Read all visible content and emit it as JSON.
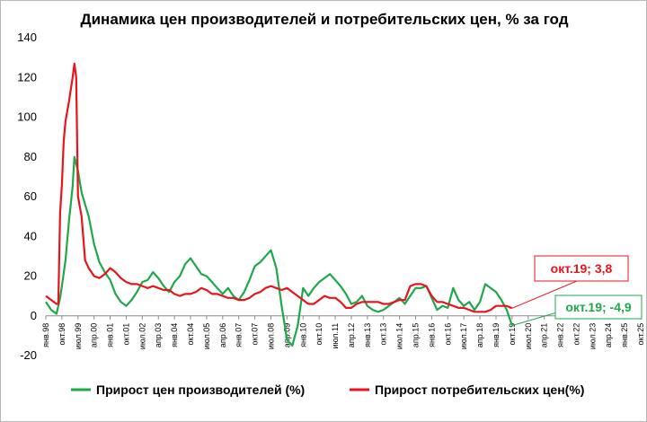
{
  "chart_data": {
    "type": "line",
    "title": "Динамика цен производителей и потребительских цен, % за год",
    "xlabel": "",
    "ylabel": "",
    "ylim": [
      -20,
      140
    ],
    "yticks": [
      -20,
      0,
      20,
      40,
      60,
      80,
      100,
      120,
      140
    ],
    "xlim": [
      "1998-01",
      "2025-10"
    ],
    "x_tick_labels": [
      "янв.98",
      "окт.98",
      "июл.99",
      "апр.00",
      "янв.01",
      "окт.01",
      "июл.02",
      "апр.03",
      "янв.04",
      "окт.04",
      "июл.05",
      "апр.06",
      "янв.07",
      "окт.07",
      "июл.08",
      "апр.09",
      "янв.10",
      "окт.10",
      "июл.11",
      "апр.12",
      "янв.13",
      "окт.13",
      "июл.14",
      "апр.15",
      "янв.16",
      "окт.16",
      "июл.17",
      "апр.18",
      "янв.19",
      "окт.19",
      "июл.20",
      "апр.21",
      "янв.22",
      "окт.22",
      "июл.23",
      "апр.24",
      "янв.25",
      "окт.25"
    ],
    "grid": false,
    "legend_position": "bottom",
    "series": [
      {
        "name": "Прирост цен производителей (%)",
        "color": "#1fa84a",
        "points": [
          [
            "1998-01",
            7
          ],
          [
            "1998-04",
            3
          ],
          [
            "1998-07",
            1
          ],
          [
            "1998-09",
            9
          ],
          [
            "1998-10",
            15
          ],
          [
            "1998-12",
            28
          ],
          [
            "1999-02",
            48
          ],
          [
            "1999-04",
            65
          ],
          [
            "1999-05",
            80
          ],
          [
            "1999-07",
            73
          ],
          [
            "1999-09",
            62
          ],
          [
            "2000-01",
            50
          ],
          [
            "2000-04",
            36
          ],
          [
            "2000-07",
            27
          ],
          [
            "2000-10",
            22
          ],
          [
            "2001-01",
            18
          ],
          [
            "2001-04",
            11
          ],
          [
            "2001-07",
            7
          ],
          [
            "2001-10",
            5
          ],
          [
            "2002-01",
            8
          ],
          [
            "2002-04",
            12
          ],
          [
            "2002-07",
            17
          ],
          [
            "2002-10",
            18
          ],
          [
            "2003-01",
            22
          ],
          [
            "2003-04",
            19
          ],
          [
            "2003-07",
            15
          ],
          [
            "2003-10",
            12
          ],
          [
            "2004-01",
            17
          ],
          [
            "2004-04",
            20
          ],
          [
            "2004-07",
            26
          ],
          [
            "2004-10",
            29
          ],
          [
            "2005-01",
            25
          ],
          [
            "2005-04",
            21
          ],
          [
            "2005-07",
            20
          ],
          [
            "2005-10",
            17
          ],
          [
            "2006-01",
            14
          ],
          [
            "2006-04",
            11
          ],
          [
            "2006-07",
            14
          ],
          [
            "2006-10",
            10
          ],
          [
            "2007-01",
            8
          ],
          [
            "2007-04",
            12
          ],
          [
            "2007-07",
            18
          ],
          [
            "2007-10",
            25
          ],
          [
            "2008-01",
            27
          ],
          [
            "2008-04",
            30
          ],
          [
            "2008-07",
            33
          ],
          [
            "2008-10",
            24
          ],
          [
            "2009-01",
            5
          ],
          [
            "2009-04",
            -12
          ],
          [
            "2009-07",
            -15
          ],
          [
            "2009-10",
            -5
          ],
          [
            "2010-01",
            14
          ],
          [
            "2010-04",
            10
          ],
          [
            "2010-07",
            14
          ],
          [
            "2010-10",
            17
          ],
          [
            "2011-01",
            19
          ],
          [
            "2011-04",
            21
          ],
          [
            "2011-07",
            18
          ],
          [
            "2011-10",
            15
          ],
          [
            "2012-01",
            11
          ],
          [
            "2012-04",
            6
          ],
          [
            "2012-07",
            7
          ],
          [
            "2012-10",
            10
          ],
          [
            "2013-01",
            5
          ],
          [
            "2013-04",
            3
          ],
          [
            "2013-07",
            2
          ],
          [
            "2013-10",
            3
          ],
          [
            "2014-01",
            5
          ],
          [
            "2014-04",
            7
          ],
          [
            "2014-07",
            9
          ],
          [
            "2014-10",
            6
          ],
          [
            "2015-01",
            10
          ],
          [
            "2015-04",
            14
          ],
          [
            "2015-07",
            14
          ],
          [
            "2015-10",
            15
          ],
          [
            "2016-01",
            9
          ],
          [
            "2016-04",
            3
          ],
          [
            "2016-07",
            5
          ],
          [
            "2016-10",
            4
          ],
          [
            "2017-01",
            14
          ],
          [
            "2017-04",
            8
          ],
          [
            "2017-07",
            5
          ],
          [
            "2017-10",
            7
          ],
          [
            "2018-01",
            3
          ],
          [
            "2018-04",
            7
          ],
          [
            "2018-07",
            16
          ],
          [
            "2018-10",
            14
          ],
          [
            "2019-01",
            12
          ],
          [
            "2019-04",
            8
          ],
          [
            "2019-07",
            3
          ],
          [
            "2019-10",
            -4.9
          ]
        ]
      },
      {
        "name": "Прирост потребительских цен(%)",
        "color": "#e8141b",
        "points": [
          [
            "1998-01",
            10
          ],
          [
            "1998-04",
            8
          ],
          [
            "1998-07",
            6
          ],
          [
            "1998-08",
            6
          ],
          [
            "1998-09",
            52
          ],
          [
            "1998-10",
            66
          ],
          [
            "1998-11",
            88
          ],
          [
            "1998-12",
            98
          ],
          [
            "1999-02",
            108
          ],
          [
            "1999-04",
            120
          ],
          [
            "1999-05",
            127
          ],
          [
            "1999-06",
            120
          ],
          [
            "1999-07",
            60
          ],
          [
            "1999-09",
            50
          ],
          [
            "1999-11",
            28
          ],
          [
            "2000-01",
            24
          ],
          [
            "2000-04",
            20
          ],
          [
            "2000-07",
            19
          ],
          [
            "2000-10",
            21
          ],
          [
            "2001-01",
            24
          ],
          [
            "2001-04",
            22
          ],
          [
            "2001-07",
            19
          ],
          [
            "2001-10",
            17
          ],
          [
            "2002-01",
            16
          ],
          [
            "2002-04",
            16
          ],
          [
            "2002-07",
            15
          ],
          [
            "2002-10",
            14
          ],
          [
            "2003-01",
            15
          ],
          [
            "2003-04",
            14
          ],
          [
            "2003-07",
            13
          ],
          [
            "2003-10",
            13
          ],
          [
            "2004-01",
            11
          ],
          [
            "2004-04",
            10
          ],
          [
            "2004-07",
            11
          ],
          [
            "2004-10",
            11
          ],
          [
            "2005-01",
            12
          ],
          [
            "2005-04",
            14
          ],
          [
            "2005-07",
            13
          ],
          [
            "2005-10",
            11
          ],
          [
            "2006-01",
            11
          ],
          [
            "2006-04",
            10
          ],
          [
            "2006-07",
            9
          ],
          [
            "2006-10",
            9
          ],
          [
            "2007-01",
            8
          ],
          [
            "2007-04",
            8
          ],
          [
            "2007-07",
            9
          ],
          [
            "2007-10",
            11
          ],
          [
            "2008-01",
            12
          ],
          [
            "2008-04",
            14
          ],
          [
            "2008-07",
            15
          ],
          [
            "2008-10",
            14
          ],
          [
            "2009-01",
            13
          ],
          [
            "2009-04",
            14
          ],
          [
            "2009-07",
            12
          ],
          [
            "2009-10",
            10
          ],
          [
            "2010-01",
            8
          ],
          [
            "2010-04",
            6
          ],
          [
            "2010-07",
            6
          ],
          [
            "2010-10",
            8
          ],
          [
            "2011-01",
            10
          ],
          [
            "2011-04",
            9
          ],
          [
            "2011-07",
            9
          ],
          [
            "2011-10",
            7
          ],
          [
            "2012-01",
            4
          ],
          [
            "2012-04",
            4
          ],
          [
            "2012-07",
            6
          ],
          [
            "2012-10",
            7
          ],
          [
            "2013-01",
            7
          ],
          [
            "2013-04",
            7
          ],
          [
            "2013-07",
            7
          ],
          [
            "2013-10",
            6
          ],
          [
            "2014-01",
            6
          ],
          [
            "2014-04",
            7
          ],
          [
            "2014-07",
            8
          ],
          [
            "2014-10",
            8
          ],
          [
            "2015-01",
            15
          ],
          [
            "2015-04",
            16
          ],
          [
            "2015-07",
            16
          ],
          [
            "2015-10",
            15
          ],
          [
            "2016-01",
            10
          ],
          [
            "2016-04",
            7
          ],
          [
            "2016-07",
            7
          ],
          [
            "2016-10",
            6
          ],
          [
            "2017-01",
            5
          ],
          [
            "2017-04",
            4
          ],
          [
            "2017-07",
            4
          ],
          [
            "2017-10",
            3
          ],
          [
            "2018-01",
            2
          ],
          [
            "2018-04",
            2
          ],
          [
            "2018-07",
            2
          ],
          [
            "2018-10",
            3
          ],
          [
            "2019-01",
            5
          ],
          [
            "2019-04",
            5
          ],
          [
            "2019-07",
            5
          ],
          [
            "2019-10",
            3.8
          ]
        ]
      }
    ],
    "annotations": [
      {
        "text": "окт.19; 3,8",
        "color": "#e8141b",
        "x": "2019-10",
        "y": 3.8
      },
      {
        "text": "окт.19; -4,9",
        "color": "#1fa84a",
        "x": "2019-10",
        "y": -4.9
      }
    ]
  }
}
